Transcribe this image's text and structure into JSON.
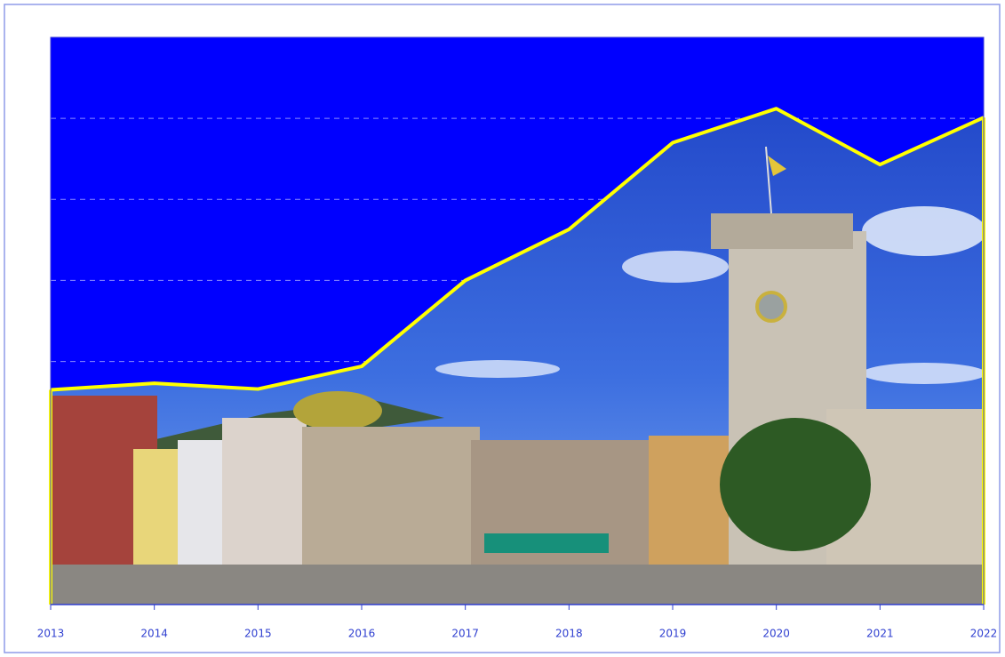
{
  "chart_data": {
    "type": "area",
    "x": [
      2013,
      2014,
      2015,
      2016,
      2017,
      2018,
      2019,
      2020,
      2021,
      2022
    ],
    "series": [
      {
        "color": "#ffff00",
        "values": [
          2.65,
          2.73,
          2.66,
          2.94,
          4.0,
          4.63,
          5.7,
          6.12,
          5.43,
          6.01
        ]
      }
    ],
    "fill_above": "#0000ff",
    "xlim": [
      2013,
      2022
    ],
    "xticks": [
      2013,
      2014,
      2015,
      2016,
      2017,
      2018,
      2019,
      2020,
      2021,
      2022
    ],
    "ylim": [
      0,
      7
    ],
    "yticks": [
      3,
      4,
      5,
      6
    ],
    "grid": true
  }
}
